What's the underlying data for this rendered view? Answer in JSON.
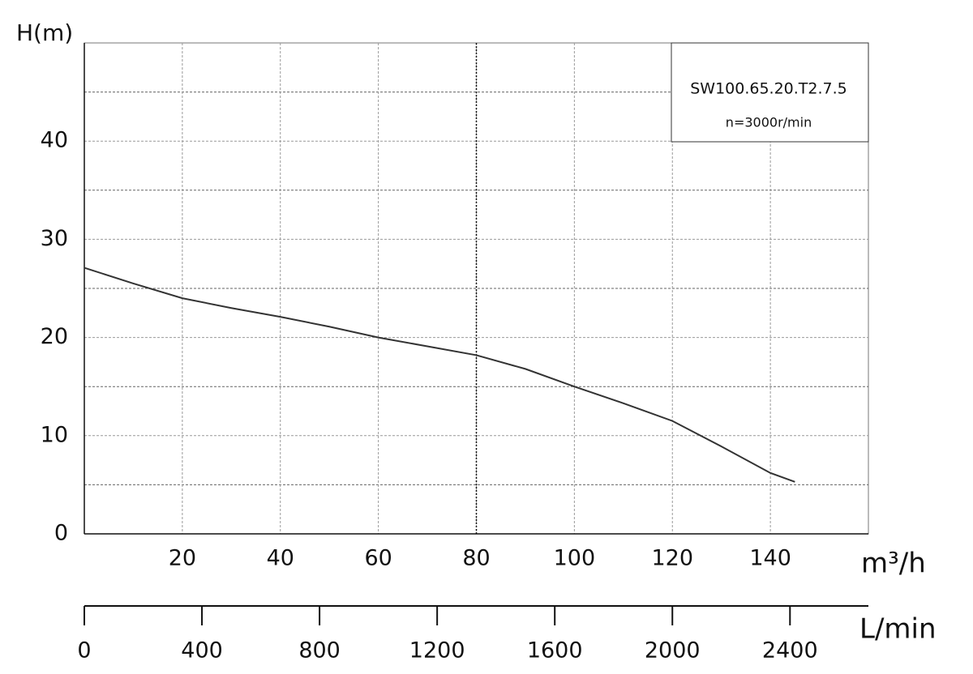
{
  "chart_data": {
    "type": "line",
    "model": "SW100.65.20.T2.7.5",
    "speed": "n=3000r/min",
    "ylabel": "H(m)",
    "xlabel": "m³/h",
    "x2label": "L/min",
    "series": [
      {
        "name": "H",
        "color": "#333333",
        "x": [
          0,
          10,
          20,
          30,
          40,
          50,
          60,
          70,
          80,
          90,
          100,
          110,
          120,
          130,
          140,
          145
        ],
        "values": [
          27.1,
          25.5,
          24,
          23,
          22.1,
          21.1,
          20,
          19.1,
          18.2,
          16.8,
          15,
          13.3,
          11.5,
          8.9,
          6.2,
          5.3
        ]
      }
    ],
    "xlim": [
      0,
      160
    ],
    "xticks": [
      20,
      40,
      60,
      80,
      100,
      120,
      140
    ],
    "ylim": [
      0,
      50
    ],
    "yticks": [
      0,
      10,
      20,
      30,
      40
    ],
    "y_minor_grid": [
      5,
      15,
      25,
      35,
      45
    ],
    "highlight_x": 80,
    "x2lim": [
      0,
      2666.7
    ],
    "x2ticks": [
      0,
      400,
      800,
      1200,
      1600,
      2000,
      2400
    ],
    "grid": true
  }
}
